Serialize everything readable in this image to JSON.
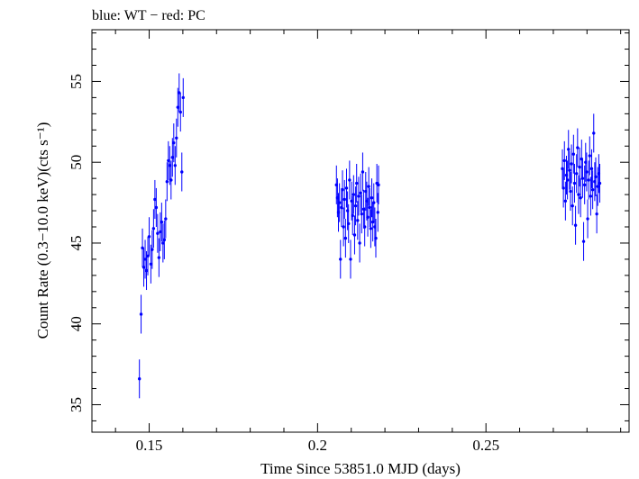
{
  "chart_data": {
    "type": "scatter",
    "title": "blue: WT − red: PC",
    "xlabel": "Time Since 53851.0 MJD (days)",
    "ylabel": "Count Rate (0.3−10.0 keV)(cts s⁻¹)",
    "xlim": [
      0.133,
      0.2925
    ],
    "ylim": [
      33.3,
      58.2
    ],
    "x_ticks": [
      0.15,
      0.2,
      0.25
    ],
    "x_tick_labels": [
      "0.15",
      "0.2",
      "0.25"
    ],
    "y_ticks": [
      35,
      40,
      45,
      50,
      55
    ],
    "y_tick_labels": [
      "35",
      "40",
      "45",
      "50",
      "55"
    ],
    "grid": false,
    "series": [
      {
        "color": "#0000ff",
        "points": [
          [
            0.1471,
            36.6,
            1.2
          ],
          [
            0.1476,
            40.6,
            1.2
          ],
          [
            0.148,
            44.7,
            1.2
          ],
          [
            0.1484,
            43.5,
            1.2
          ],
          [
            0.1488,
            44.0,
            1.2
          ],
          [
            0.1492,
            43.3,
            1.2
          ],
          [
            0.1496,
            44.2,
            1.2
          ],
          [
            0.15,
            45.4,
            1.2
          ],
          [
            0.1505,
            43.7,
            1.2
          ],
          [
            0.1509,
            44.6,
            1.2
          ],
          [
            0.1513,
            45.9,
            1.2
          ],
          [
            0.1517,
            47.7,
            1.2
          ],
          [
            0.1521,
            47.2,
            1.2
          ],
          [
            0.1525,
            45.6,
            1.2
          ],
          [
            0.1529,
            44.1,
            1.2
          ],
          [
            0.1533,
            45.7,
            1.2
          ],
          [
            0.1537,
            46.3,
            1.2
          ],
          [
            0.1541,
            45.0,
            1.2
          ],
          [
            0.1545,
            45.2,
            1.2
          ],
          [
            0.1549,
            46.5,
            1.2
          ],
          [
            0.1553,
            48.8,
            1.2
          ],
          [
            0.1557,
            50.1,
            1.2
          ],
          [
            0.1561,
            49.8,
            1.2
          ],
          [
            0.1565,
            48.9,
            1.2
          ],
          [
            0.1569,
            50.3,
            1.2
          ],
          [
            0.1573,
            51.2,
            1.2
          ],
          [
            0.1577,
            49.8,
            1.2
          ],
          [
            0.1581,
            51.5,
            1.2
          ],
          [
            0.1585,
            53.4,
            1.2
          ],
          [
            0.1589,
            54.3,
            1.2
          ],
          [
            0.1593,
            53.1,
            1.2
          ],
          [
            0.1597,
            49.4,
            1.2
          ],
          [
            0.1601,
            54.0,
            1.2
          ],
          [
            0.2056,
            48.6,
            1.2
          ],
          [
            0.2059,
            47.8,
            1.2
          ],
          [
            0.2062,
            46.9,
            1.2
          ],
          [
            0.2065,
            47.5,
            1.2
          ],
          [
            0.2068,
            44.0,
            1.2
          ],
          [
            0.2071,
            47.2,
            1.2
          ],
          [
            0.2074,
            48.3,
            1.2
          ],
          [
            0.2077,
            46.0,
            1.2
          ],
          [
            0.208,
            47.7,
            1.2
          ],
          [
            0.2083,
            45.3,
            1.2
          ],
          [
            0.2086,
            48.4,
            1.2
          ],
          [
            0.2089,
            47.0,
            1.2
          ],
          [
            0.2092,
            46.2,
            1.2
          ],
          [
            0.2095,
            48.9,
            1.2
          ],
          [
            0.2098,
            44.0,
            1.2
          ],
          [
            0.2101,
            47.6,
            1.2
          ],
          [
            0.2104,
            46.7,
            1.2
          ],
          [
            0.2107,
            48.0,
            1.2
          ],
          [
            0.211,
            45.5,
            1.2
          ],
          [
            0.2113,
            47.3,
            1.2
          ],
          [
            0.2116,
            48.7,
            1.2
          ],
          [
            0.2119,
            46.4,
            1.2
          ],
          [
            0.2122,
            47.9,
            1.2
          ],
          [
            0.2125,
            45.0,
            1.2
          ],
          [
            0.2128,
            48.1,
            1.2
          ],
          [
            0.2131,
            46.8,
            1.2
          ],
          [
            0.2134,
            49.4,
            1.2
          ],
          [
            0.2137,
            47.1,
            1.2
          ],
          [
            0.214,
            46.0,
            1.2
          ],
          [
            0.2143,
            48.2,
            1.2
          ],
          [
            0.2146,
            47.6,
            1.2
          ],
          [
            0.2149,
            46.6,
            1.2
          ],
          [
            0.2152,
            48.5,
            1.2
          ],
          [
            0.2155,
            47.2,
            1.2
          ],
          [
            0.2158,
            45.9,
            1.2
          ],
          [
            0.2161,
            47.8,
            1.2
          ],
          [
            0.2164,
            46.3,
            1.2
          ],
          [
            0.2167,
            47.5,
            1.2
          ],
          [
            0.217,
            46.0,
            1.2
          ],
          [
            0.2173,
            45.3,
            1.2
          ],
          [
            0.2176,
            48.7,
            1.2
          ],
          [
            0.2179,
            46.9,
            1.2
          ],
          [
            0.2181,
            48.6,
            1.2
          ],
          [
            0.2727,
            49.6,
            1.2
          ],
          [
            0.273,
            48.4,
            1.2
          ],
          [
            0.2733,
            50.1,
            1.2
          ],
          [
            0.2736,
            47.6,
            1.2
          ],
          [
            0.2739,
            49.2,
            1.2
          ],
          [
            0.2742,
            48.9,
            1.2
          ],
          [
            0.2745,
            50.8,
            1.2
          ],
          [
            0.2748,
            49.5,
            1.2
          ],
          [
            0.2751,
            48.2,
            1.2
          ],
          [
            0.2754,
            49.9,
            1.2
          ],
          [
            0.2757,
            47.3,
            1.2
          ],
          [
            0.276,
            50.5,
            1.2
          ],
          [
            0.2763,
            48.7,
            1.2
          ],
          [
            0.2766,
            46.1,
            1.2
          ],
          [
            0.2769,
            49.3,
            1.2
          ],
          [
            0.2772,
            50.9,
            1.2
          ],
          [
            0.2775,
            48.0,
            1.2
          ],
          [
            0.2778,
            49.7,
            1.2
          ],
          [
            0.2781,
            47.8,
            1.2
          ],
          [
            0.2784,
            50.2,
            1.2
          ],
          [
            0.2787,
            49.0,
            1.2
          ],
          [
            0.279,
            45.1,
            1.2
          ],
          [
            0.2793,
            48.6,
            1.2
          ],
          [
            0.2796,
            50.0,
            1.2
          ],
          [
            0.2799,
            49.4,
            1.2
          ],
          [
            0.2802,
            46.5,
            1.2
          ],
          [
            0.2805,
            48.9,
            1.2
          ],
          [
            0.2808,
            50.4,
            1.2
          ],
          [
            0.2811,
            47.9,
            1.2
          ],
          [
            0.2814,
            49.6,
            1.2
          ],
          [
            0.2817,
            48.3,
            1.2
          ],
          [
            0.282,
            51.8,
            1.2
          ],
          [
            0.2823,
            48.8,
            1.2
          ],
          [
            0.2826,
            49.1,
            1.2
          ],
          [
            0.2829,
            46.8,
            1.2
          ],
          [
            0.2832,
            48.5,
            1.2
          ],
          [
            0.2835,
            49.3,
            1.2
          ],
          [
            0.2838,
            48.7,
            1.2
          ]
        ]
      }
    ]
  }
}
